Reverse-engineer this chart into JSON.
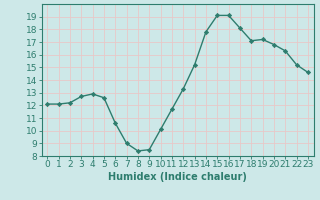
{
  "x": [
    0,
    1,
    2,
    3,
    4,
    5,
    6,
    7,
    8,
    9,
    10,
    11,
    12,
    13,
    14,
    15,
    16,
    17,
    18,
    19,
    20,
    21,
    22,
    23
  ],
  "y": [
    12.1,
    12.1,
    12.2,
    12.7,
    12.9,
    12.6,
    10.6,
    9.0,
    8.4,
    8.5,
    10.1,
    11.7,
    13.3,
    15.2,
    17.8,
    19.1,
    19.1,
    18.1,
    17.1,
    17.2,
    16.8,
    16.3,
    15.2,
    14.6
  ],
  "line_color": "#2e7d6e",
  "marker": "D",
  "markersize": 2.2,
  "linewidth": 1.0,
  "xlabel": "Humidex (Indice chaleur)",
  "xlim": [
    -0.5,
    23.5
  ],
  "ylim": [
    8,
    20
  ],
  "yticks": [
    8,
    9,
    10,
    11,
    12,
    13,
    14,
    15,
    16,
    17,
    18,
    19
  ],
  "xticks": [
    0,
    1,
    2,
    3,
    4,
    5,
    6,
    7,
    8,
    9,
    10,
    11,
    12,
    13,
    14,
    15,
    16,
    17,
    18,
    19,
    20,
    21,
    22,
    23
  ],
  "xtick_labels": [
    "0",
    "1",
    "2",
    "3",
    "4",
    "5",
    "6",
    "7",
    "8",
    "9",
    "10",
    "11",
    "12",
    "13",
    "14",
    "15",
    "16",
    "17",
    "18",
    "19",
    "20",
    "21",
    "22",
    "23"
  ],
  "bg_color": "#cde8e8",
  "grid_color": "#e8c8c8",
  "tick_color": "#2e7d6e",
  "label_color": "#2e7d6e",
  "xlabel_fontsize": 7,
  "tick_fontsize": 6.5
}
